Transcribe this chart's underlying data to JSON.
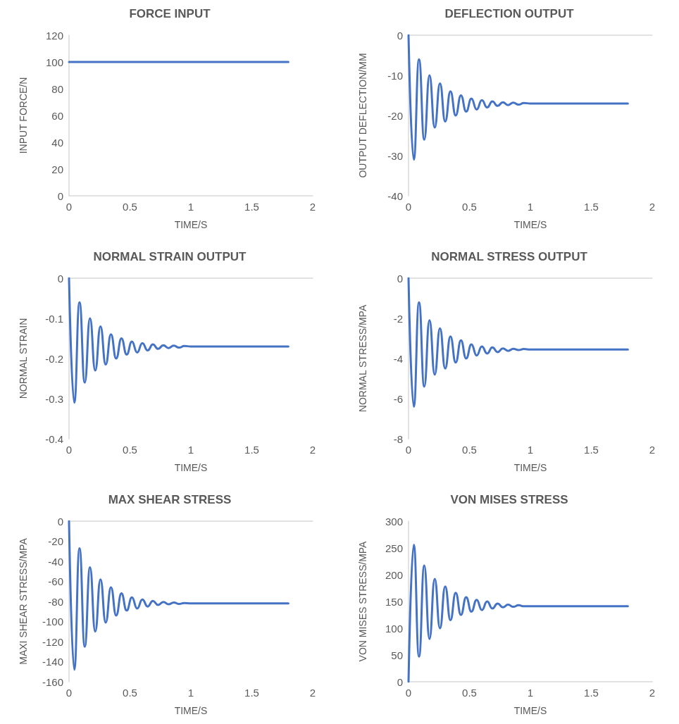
{
  "chart_data": [
    {
      "type": "line",
      "title": "FORCE INPUT",
      "xlabel": "TIME/S",
      "ylabel": "INPUT FORCE/N",
      "color": "#4472c4",
      "x": [
        0,
        1.8
      ],
      "values": [
        100,
        100
      ],
      "xlim": [
        0,
        2
      ],
      "xticks": [
        0,
        0.5,
        1,
        1.5,
        2
      ],
      "ylim": [
        0,
        120
      ],
      "yticks": [
        0,
        20,
        40,
        60,
        80,
        100,
        120
      ]
    },
    {
      "type": "line",
      "title": "DEFLECTION OUTPUT",
      "xlabel": "TIME/S",
      "ylabel": "OUTPUT DEFLECTION/MM",
      "color": "#4472c4",
      "x": [
        0,
        0.043,
        0.086,
        0.129,
        0.172,
        0.215,
        0.258,
        0.301,
        0.344,
        0.387,
        0.43,
        0.473,
        0.516,
        0.559,
        0.602,
        0.645,
        0.688,
        0.731,
        0.774,
        0.817,
        0.86,
        0.903,
        0.946,
        1.0,
        1.8
      ],
      "values": [
        0,
        -31,
        -6,
        -26,
        -10,
        -23,
        -12,
        -21.5,
        -14,
        -20,
        -15,
        -19,
        -15.8,
        -18.5,
        -16.2,
        -18,
        -16.5,
        -17.6,
        -16.7,
        -17.4,
        -16.8,
        -17.3,
        -16.9,
        -17,
        -17
      ],
      "xlim": [
        0,
        2
      ],
      "xticks": [
        0,
        0.5,
        1,
        1.5,
        2
      ],
      "ylim": [
        -40,
        0
      ],
      "yticks": [
        -40,
        -30,
        -20,
        -10,
        0
      ]
    },
    {
      "type": "line",
      "title": "NORMAL STRAIN OUTPUT",
      "xlabel": "TIME/S",
      "ylabel": "NORMAL STRAIN",
      "color": "#4472c4",
      "x": [
        0,
        0.043,
        0.086,
        0.129,
        0.172,
        0.215,
        0.258,
        0.301,
        0.344,
        0.387,
        0.43,
        0.473,
        0.516,
        0.559,
        0.602,
        0.645,
        0.688,
        0.731,
        0.774,
        0.817,
        0.86,
        0.903,
        0.946,
        1.0,
        1.8
      ],
      "values": [
        0,
        -0.31,
        -0.06,
        -0.26,
        -0.1,
        -0.23,
        -0.12,
        -0.215,
        -0.14,
        -0.2,
        -0.15,
        -0.19,
        -0.158,
        -0.185,
        -0.162,
        -0.18,
        -0.165,
        -0.176,
        -0.167,
        -0.174,
        -0.168,
        -0.173,
        -0.169,
        -0.17,
        -0.17
      ],
      "xlim": [
        0,
        2
      ],
      "xticks": [
        0,
        0.5,
        1,
        1.5,
        2
      ],
      "ylim": [
        -0.4,
        0
      ],
      "yticks": [
        -0.4,
        -0.3,
        -0.2,
        -0.1,
        0
      ]
    },
    {
      "type": "line",
      "title": "NORMAL STRESS OUTPUT",
      "xlabel": "TIME/S",
      "ylabel": "NORMAL STRESS/MPA",
      "color": "#4472c4",
      "x": [
        0,
        0.043,
        0.086,
        0.129,
        0.172,
        0.215,
        0.258,
        0.301,
        0.344,
        0.387,
        0.43,
        0.473,
        0.516,
        0.559,
        0.602,
        0.645,
        0.688,
        0.731,
        0.774,
        0.817,
        0.86,
        0.903,
        0.946,
        1.0,
        1.8
      ],
      "values": [
        0,
        -6.4,
        -1.2,
        -5.4,
        -2.1,
        -4.8,
        -2.5,
        -4.5,
        -2.9,
        -4.2,
        -3.1,
        -4.0,
        -3.3,
        -3.85,
        -3.4,
        -3.75,
        -3.45,
        -3.68,
        -3.5,
        -3.62,
        -3.52,
        -3.58,
        -3.53,
        -3.55,
        -3.55
      ],
      "xlim": [
        0,
        2
      ],
      "xticks": [
        0,
        0.5,
        1,
        1.5,
        2
      ],
      "ylim": [
        -8,
        0
      ],
      "yticks": [
        -8,
        -6,
        -4,
        -2,
        0
      ]
    },
    {
      "type": "line",
      "title": "MAX SHEAR STRESS",
      "xlabel": "TIME/S",
      "ylabel": "MAXI SHEAR STRESS/MPA",
      "color": "#4472c4",
      "x": [
        0,
        0.043,
        0.086,
        0.129,
        0.172,
        0.215,
        0.258,
        0.301,
        0.344,
        0.387,
        0.43,
        0.473,
        0.516,
        0.559,
        0.602,
        0.645,
        0.688,
        0.731,
        0.774,
        0.817,
        0.86,
        0.903,
        0.946,
        1.0,
        1.8
      ],
      "values": [
        0,
        -148,
        -27,
        -125,
        -46,
        -110,
        -58,
        -101,
        -66,
        -94,
        -72,
        -89,
        -76,
        -87,
        -78,
        -85,
        -79.5,
        -83.5,
        -80.5,
        -82.8,
        -81,
        -82.5,
        -81.5,
        -82,
        -82
      ],
      "xlim": [
        0,
        2
      ],
      "xticks": [
        0,
        0.5,
        1,
        1.5,
        2
      ],
      "ylim": [
        -160,
        0
      ],
      "yticks": [
        -160,
        -140,
        -120,
        -100,
        -80,
        -60,
        -40,
        -20,
        0
      ]
    },
    {
      "type": "line",
      "title": "VON MISES STRESS",
      "xlabel": "TIME/S",
      "ylabel": "VON MISES STRESS/MPA",
      "color": "#4472c4",
      "x": [
        0,
        0.043,
        0.086,
        0.129,
        0.172,
        0.215,
        0.258,
        0.301,
        0.344,
        0.387,
        0.43,
        0.473,
        0.516,
        0.559,
        0.602,
        0.645,
        0.688,
        0.731,
        0.774,
        0.817,
        0.86,
        0.903,
        0.946,
        1.0,
        1.8
      ],
      "values": [
        0,
        256,
        47,
        217,
        80,
        192,
        100,
        178,
        115,
        166,
        125,
        158,
        131,
        153,
        134,
        150,
        137,
        146,
        139,
        144,
        140,
        143,
        141,
        141,
        141
      ],
      "xlim": [
        0,
        2
      ],
      "xticks": [
        0,
        0.5,
        1,
        1.5,
        2
      ],
      "ylim": [
        0,
        300
      ],
      "yticks": [
        0,
        50,
        100,
        150,
        200,
        250,
        300
      ]
    }
  ]
}
